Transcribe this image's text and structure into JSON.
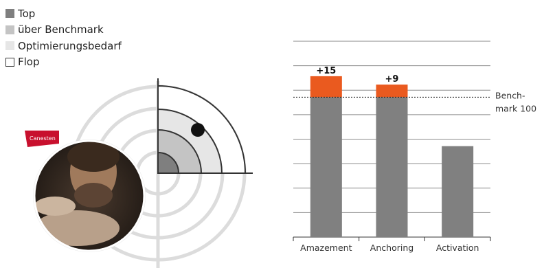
{
  "legend": {
    "items": [
      {
        "label": "Top",
        "color": "#7f7f7f",
        "border": "#7f7f7f"
      },
      {
        "label": "über Benchmark",
        "color": "#c4c4c4",
        "border": "#c4c4c4"
      },
      {
        "label": "Optimierungsbedarf",
        "color": "#e6e6e6",
        "border": "#e6e6e6"
      },
      {
        "label": "Flop",
        "color": "#ffffff",
        "border": "#333333"
      }
    ]
  },
  "target": {
    "brand_label": "Canesten",
    "colors": {
      "top": "#7f7f7f",
      "above": "#c4c4c4",
      "optimize": "#e6e6e6",
      "flop": "#ffffff",
      "marker": "#111111"
    }
  },
  "chart_data": {
    "type": "bar",
    "categories": [
      "Amazement",
      "Anchoring",
      "Activation"
    ],
    "base_values": [
      100,
      100,
      65
    ],
    "uplift_values": [
      15,
      9,
      0
    ],
    "uplift_labels": [
      "+15",
      "+9",
      ""
    ],
    "benchmark": {
      "value": 100,
      "label_line1": "Bench-",
      "label_line2": "mark 100"
    },
    "ylim": [
      0,
      140
    ],
    "grid": true,
    "colors": {
      "base": "#808080",
      "uplift": "#ea5a1f",
      "grid": "#8a8a8a"
    }
  }
}
